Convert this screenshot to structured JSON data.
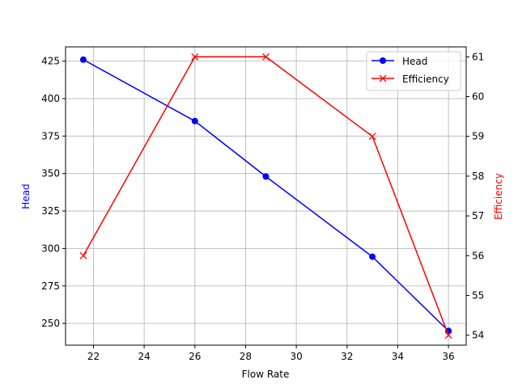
{
  "chart_data": {
    "type": "line",
    "title": "",
    "xlabel": "Flow Rate",
    "ylabel": "Head",
    "y2label": "Efficiency",
    "x": [
      21.6,
      26.0,
      28.8,
      33.0,
      36.0
    ],
    "series": [
      {
        "name": "Head",
        "axis": "left",
        "color": "#0000ff",
        "marker": "o",
        "values": [
          426,
          385,
          348,
          294.5,
          245
        ]
      },
      {
        "name": "Efficiency",
        "axis": "right",
        "color": "#ff0000",
        "marker": "x",
        "values": [
          56,
          61,
          61,
          59,
          54
        ]
      }
    ],
    "xlim": [
      20.9,
      36.7
    ],
    "ylim": [
      235.5,
      434.5
    ],
    "y2lim": [
      53.75,
      61.25
    ],
    "xticks": [
      "22",
      "24",
      "26",
      "28",
      "30",
      "32",
      "34",
      "36"
    ],
    "yticks": [
      "250",
      "275",
      "300",
      "325",
      "350",
      "375",
      "400",
      "425"
    ],
    "y2ticks": [
      "54",
      "55",
      "56",
      "57",
      "58",
      "59",
      "60",
      "61"
    ],
    "grid": true,
    "legend_position": "upper right"
  },
  "legend": {
    "head": "Head",
    "efficiency": "Efficiency"
  }
}
